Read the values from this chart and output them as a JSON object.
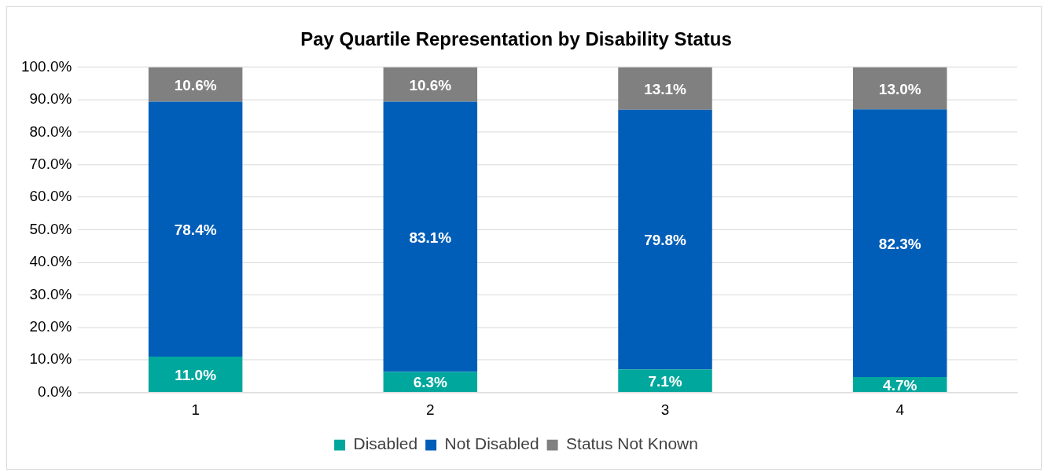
{
  "chart_data": {
    "type": "bar",
    "title": "Pay Quartile Representation by Disability Status",
    "stacked": true,
    "categories": [
      "1",
      "2",
      "3",
      "4"
    ],
    "series": [
      {
        "name": "Disabled",
        "color": "#00a79d",
        "values": [
          11.0,
          6.3,
          7.1,
          4.7
        ],
        "value_labels": [
          "11.0%",
          "6.3%",
          "7.1%",
          "4.7%"
        ]
      },
      {
        "name": "Not Disabled",
        "color": "#005eb8",
        "values": [
          78.4,
          83.1,
          79.8,
          82.3
        ],
        "value_labels": [
          "78.4%",
          "83.1%",
          "79.8%",
          "82.3%"
        ]
      },
      {
        "name": "Status Not Known",
        "color": "#808080",
        "values": [
          10.6,
          10.6,
          13.1,
          13.0
        ],
        "value_labels": [
          "10.6%",
          "10.6%",
          "13.1%",
          "13.0%"
        ]
      }
    ],
    "ylim": [
      0,
      100
    ],
    "yticks": [
      {
        "value": 0,
        "label": "0.0%"
      },
      {
        "value": 10,
        "label": "10.0%"
      },
      {
        "value": 20,
        "label": "20.0%"
      },
      {
        "value": 30,
        "label": "30.0%"
      },
      {
        "value": 40,
        "label": "40.0%"
      },
      {
        "value": 50,
        "label": "50.0%"
      },
      {
        "value": 60,
        "label": "60.0%"
      },
      {
        "value": 70,
        "label": "70.0%"
      },
      {
        "value": 80,
        "label": "80.0%"
      },
      {
        "value": 90,
        "label": "90.0%"
      },
      {
        "value": 100,
        "label": "100.0%"
      }
    ],
    "grid": "y",
    "legend": "bottom"
  }
}
